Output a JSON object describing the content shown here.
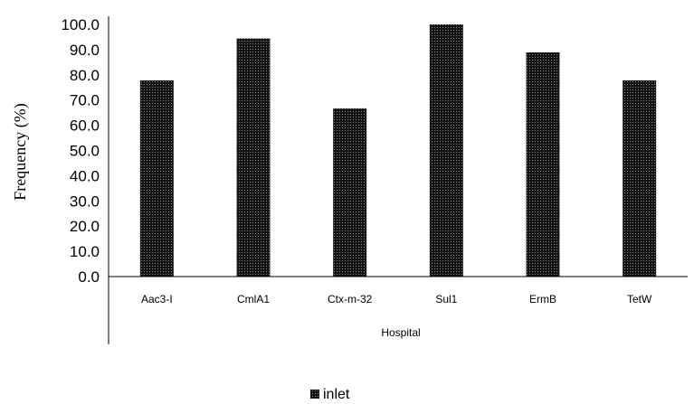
{
  "chart_data": {
    "type": "bar",
    "categories": [
      "Aac3-I",
      "CmlA1",
      "Ctx-m-32",
      "Sul1",
      "ErmB",
      "TetW"
    ],
    "series": [
      {
        "name": "inlet",
        "values": [
          77.8,
          94.4,
          66.7,
          100.0,
          88.9,
          77.8
        ]
      }
    ],
    "group_label": "Hospital",
    "xlabel": "",
    "ylabel": "Frequency (%)",
    "ylim": [
      0,
      100
    ],
    "y_ticks": [
      "0.0",
      "10.0",
      "20.0",
      "30.0",
      "40.0",
      "50.0",
      "60.0",
      "70.0",
      "80.0",
      "90.0",
      "100.0"
    ],
    "grid": false,
    "legend_position": "bottom",
    "bar_color": "#1a1a1a",
    "background": "#ffffff"
  }
}
